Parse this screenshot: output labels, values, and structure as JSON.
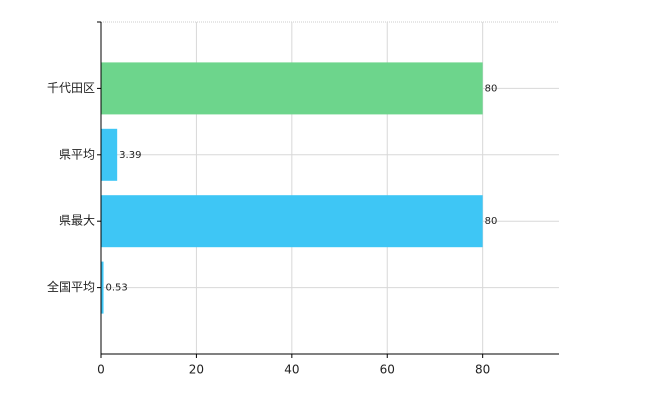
{
  "chart_data": {
    "type": "bar",
    "orientation": "horizontal",
    "categories": [
      "千代田区",
      "県平均",
      "県最大",
      "全国平均"
    ],
    "values": [
      80,
      3.39,
      80,
      0.53
    ],
    "colors": [
      "#6dd58c",
      "#3ec6f5",
      "#3ec6f5",
      "#3ec6f5"
    ],
    "xlim": [
      0,
      96
    ],
    "xticks": [
      0,
      20,
      40,
      60,
      80
    ],
    "grid": true
  }
}
